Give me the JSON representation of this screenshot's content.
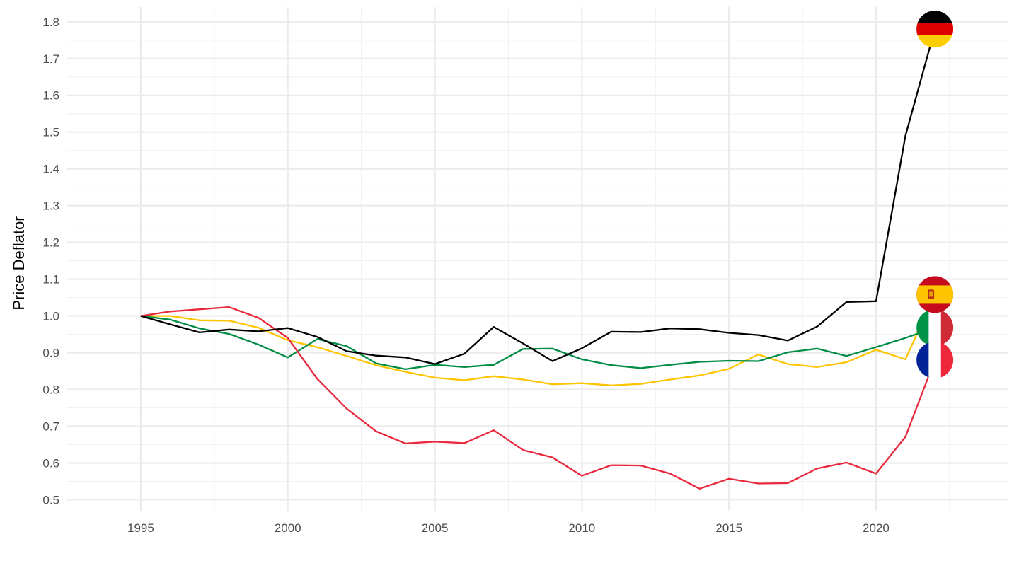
{
  "chart_data": {
    "type": "line",
    "title": "",
    "xlabel": "",
    "ylabel": "Price Deflator",
    "xlim": [
      1992.5,
      2024.5
    ],
    "ylim": [
      0.47,
      1.84
    ],
    "x_ticks": [
      "1995",
      "2000",
      "2005",
      "2010",
      "2015",
      "2020"
    ],
    "y_ticks": [
      "0.5",
      "0.6",
      "0.7",
      "0.8",
      "0.9",
      "1.0",
      "1.1",
      "1.2",
      "1.3",
      "1.4",
      "1.5",
      "1.6",
      "1.7",
      "1.8"
    ],
    "grid": true,
    "legend": "none",
    "x": [
      1995,
      1996,
      1997,
      1998,
      1999,
      2000,
      2001,
      2002,
      2003,
      2004,
      2005,
      2006,
      2007,
      2008,
      2009,
      2010,
      2011,
      2012,
      2013,
      2014,
      2015,
      2016,
      2017,
      2018,
      2019,
      2020,
      2021,
      2022
    ],
    "series": [
      {
        "key": "germany",
        "color": "#000000",
        "icon": "germany-flag-icon",
        "values": [
          1.0,
          0.977,
          0.955,
          0.963,
          0.958,
          0.967,
          0.943,
          0.904,
          0.892,
          0.887,
          0.869,
          0.897,
          0.97,
          0.925,
          0.877,
          0.912,
          0.957,
          0.956,
          0.966,
          0.964,
          0.954,
          0.948,
          0.933,
          0.971,
          1.038,
          1.04,
          1.49,
          1.78
        ]
      },
      {
        "key": "spain",
        "color": "#FFC400",
        "icon": "spain-flag-icon",
        "values": [
          1.0,
          1.0,
          0.988,
          0.987,
          0.968,
          0.934,
          0.915,
          0.891,
          0.866,
          0.848,
          0.832,
          0.825,
          0.836,
          0.827,
          0.814,
          0.817,
          0.811,
          0.815,
          0.827,
          0.838,
          0.856,
          0.895,
          0.869,
          0.861,
          0.874,
          0.908,
          0.882,
          1.058
        ]
      },
      {
        "key": "italy",
        "color": "#008C45",
        "icon": "italy-flag-icon",
        "values": [
          1.0,
          0.99,
          0.966,
          0.951,
          0.922,
          0.887,
          0.937,
          0.918,
          0.871,
          0.855,
          0.867,
          0.861,
          0.867,
          0.91,
          0.911,
          0.882,
          0.866,
          0.858,
          0.867,
          0.875,
          0.878,
          0.877,
          0.901,
          0.911,
          0.891,
          0.915,
          0.94,
          0.968
        ]
      },
      {
        "key": "france",
        "color": "#E8283C",
        "icon": "france-flag-icon",
        "values": [
          1.0,
          1.012,
          1.018,
          1.024,
          0.995,
          0.94,
          0.829,
          0.748,
          0.686,
          0.653,
          0.658,
          0.654,
          0.689,
          0.635,
          0.615,
          0.565,
          0.594,
          0.593,
          0.571,
          0.53,
          0.557,
          0.544,
          0.545,
          0.585,
          0.601,
          0.571,
          0.671,
          0.88
        ]
      }
    ]
  }
}
